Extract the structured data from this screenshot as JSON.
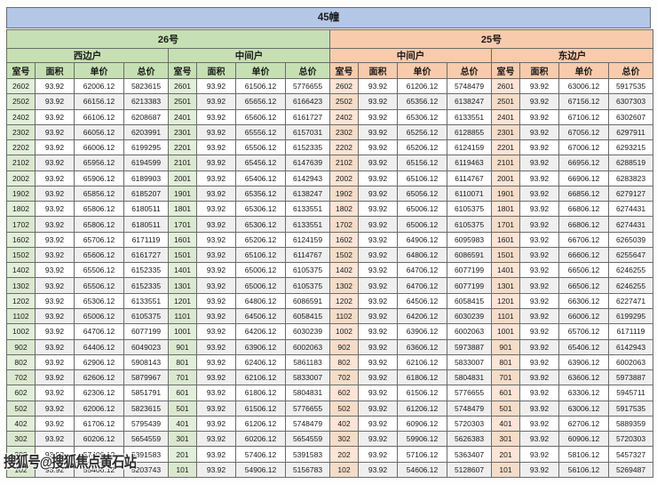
{
  "page_title": "45幢",
  "watermark": {
    "text": "搜狐号@搜狐焦点黄石站"
  },
  "colors": {
    "banner_bg": "#b4c7e7",
    "left_header_bg": "#c6e0b4",
    "left_room_bg": "#e2efda",
    "right_header_bg": "#f8cbad",
    "right_room_bg": "#fce4d6",
    "stripe_bg": "#efefef",
    "border": "#6b6b6b"
  },
  "table": {
    "buildings": [
      {
        "label": "26号"
      },
      {
        "label": "25号"
      }
    ],
    "unit_types": [
      {
        "label": "西边户"
      },
      {
        "label": "中间户"
      },
      {
        "label": "中间户"
      },
      {
        "label": "东边户"
      }
    ],
    "col_headers": [
      "室号",
      "面积",
      "单价",
      "总价"
    ],
    "rows": [
      [
        [
          "2602",
          "93.92",
          "62006.12",
          "5823615"
        ],
        [
          "2601",
          "93.92",
          "61506.12",
          "5776655"
        ],
        [
          "2602",
          "93.92",
          "61206.12",
          "5748479"
        ],
        [
          "2601",
          "93.92",
          "63006.12",
          "5917535"
        ]
      ],
      [
        [
          "2502",
          "93.92",
          "66156.12",
          "6213383"
        ],
        [
          "2501",
          "93.92",
          "65656.12",
          "6166423"
        ],
        [
          "2502",
          "93.92",
          "65356.12",
          "6138247"
        ],
        [
          "2501",
          "93.92",
          "67156.12",
          "6307303"
        ]
      ],
      [
        [
          "2402",
          "93.92",
          "66106.12",
          "6208687"
        ],
        [
          "2401",
          "93.92",
          "65606.12",
          "6161727"
        ],
        [
          "2402",
          "93.92",
          "65306.12",
          "6133551"
        ],
        [
          "2401",
          "93.92",
          "67106.12",
          "6302607"
        ]
      ],
      [
        [
          "2302",
          "93.92",
          "66056.12",
          "6203991"
        ],
        [
          "2301",
          "93.92",
          "65556.12",
          "6157031"
        ],
        [
          "2302",
          "93.92",
          "65256.12",
          "6128855"
        ],
        [
          "2301",
          "93.92",
          "67056.12",
          "6297911"
        ]
      ],
      [
        [
          "2202",
          "93.92",
          "66006.12",
          "6199295"
        ],
        [
          "2201",
          "93.92",
          "65506.12",
          "6152335"
        ],
        [
          "2202",
          "93.92",
          "65206.12",
          "6124159"
        ],
        [
          "2201",
          "93.92",
          "67006.12",
          "6293215"
        ]
      ],
      [
        [
          "2102",
          "93.92",
          "65956.12",
          "6194599"
        ],
        [
          "2101",
          "93.92",
          "65456.12",
          "6147639"
        ],
        [
          "2102",
          "93.92",
          "65156.12",
          "6119463"
        ],
        [
          "2101",
          "93.92",
          "66956.12",
          "6288519"
        ]
      ],
      [
        [
          "2002",
          "93.92",
          "65906.12",
          "6189903"
        ],
        [
          "2001",
          "93.92",
          "65406.12",
          "6142943"
        ],
        [
          "2002",
          "93.92",
          "65106.12",
          "6114767"
        ],
        [
          "2001",
          "93.92",
          "66906.12",
          "6283823"
        ]
      ],
      [
        [
          "1902",
          "93.92",
          "65856.12",
          "6185207"
        ],
        [
          "1901",
          "93.92",
          "65356.12",
          "6138247"
        ],
        [
          "1902",
          "93.92",
          "65056.12",
          "6110071"
        ],
        [
          "1901",
          "93.92",
          "66856.12",
          "6279127"
        ]
      ],
      [
        [
          "1802",
          "93.92",
          "65806.12",
          "6180511"
        ],
        [
          "1801",
          "93.92",
          "65306.12",
          "6133551"
        ],
        [
          "1802",
          "93.92",
          "65006.12",
          "6105375"
        ],
        [
          "1801",
          "93.92",
          "66806.12",
          "6274431"
        ]
      ],
      [
        [
          "1702",
          "93.92",
          "65806.12",
          "6180511"
        ],
        [
          "1701",
          "93.92",
          "65306.12",
          "6133551"
        ],
        [
          "1702",
          "93.92",
          "65006.12",
          "6105375"
        ],
        [
          "1701",
          "93.92",
          "66806.12",
          "6274431"
        ]
      ],
      [
        [
          "1602",
          "93.92",
          "65706.12",
          "6171119"
        ],
        [
          "1601",
          "93.92",
          "65206.12",
          "6124159"
        ],
        [
          "1602",
          "93.92",
          "64906.12",
          "6095983"
        ],
        [
          "1601",
          "93.92",
          "66706.12",
          "6265039"
        ]
      ],
      [
        [
          "1502",
          "93.92",
          "65606.12",
          "6161727"
        ],
        [
          "1501",
          "93.92",
          "65106.12",
          "6114767"
        ],
        [
          "1502",
          "93.92",
          "64806.12",
          "6086591"
        ],
        [
          "1501",
          "93.92",
          "66606.12",
          "6255647"
        ]
      ],
      [
        [
          "1402",
          "93.92",
          "65506.12",
          "6152335"
        ],
        [
          "1401",
          "93.92",
          "65006.12",
          "6105375"
        ],
        [
          "1402",
          "93.92",
          "64706.12",
          "6077199"
        ],
        [
          "1401",
          "93.92",
          "66506.12",
          "6246255"
        ]
      ],
      [
        [
          "1302",
          "93.92",
          "65506.12",
          "6152335"
        ],
        [
          "1301",
          "93.92",
          "65006.12",
          "6105375"
        ],
        [
          "1302",
          "93.92",
          "64706.12",
          "6077199"
        ],
        [
          "1301",
          "93.92",
          "66506.12",
          "6246255"
        ]
      ],
      [
        [
          "1202",
          "93.92",
          "65306.12",
          "6133551"
        ],
        [
          "1201",
          "93.92",
          "64806.12",
          "6086591"
        ],
        [
          "1202",
          "93.92",
          "64506.12",
          "6058415"
        ],
        [
          "1201",
          "93.92",
          "66306.12",
          "6227471"
        ]
      ],
      [
        [
          "1102",
          "93.92",
          "65006.12",
          "6105375"
        ],
        [
          "1101",
          "93.92",
          "64506.12",
          "6058415"
        ],
        [
          "1102",
          "93.92",
          "64206.12",
          "6030239"
        ],
        [
          "1101",
          "93.92",
          "66006.12",
          "6199295"
        ]
      ],
      [
        [
          "1002",
          "93.92",
          "64706.12",
          "6077199"
        ],
        [
          "1001",
          "93.92",
          "64206.12",
          "6030239"
        ],
        [
          "1002",
          "93.92",
          "63906.12",
          "6002063"
        ],
        [
          "1001",
          "93.92",
          "65706.12",
          "6171119"
        ]
      ],
      [
        [
          "902",
          "93.92",
          "64406.12",
          "6049023"
        ],
        [
          "901",
          "93.92",
          "63906.12",
          "6002063"
        ],
        [
          "902",
          "93.92",
          "63606.12",
          "5973887"
        ],
        [
          "901",
          "93.92",
          "65406.12",
          "6142943"
        ]
      ],
      [
        [
          "802",
          "93.92",
          "62906.12",
          "5908143"
        ],
        [
          "801",
          "93.92",
          "62406.12",
          "5861183"
        ],
        [
          "802",
          "93.92",
          "62106.12",
          "5833007"
        ],
        [
          "801",
          "93.92",
          "63906.12",
          "6002063"
        ]
      ],
      [
        [
          "702",
          "93.92",
          "62606.12",
          "5879967"
        ],
        [
          "701",
          "93.92",
          "62106.12",
          "5833007"
        ],
        [
          "702",
          "93.92",
          "61806.12",
          "5804831"
        ],
        [
          "701",
          "93.92",
          "63606.12",
          "5973887"
        ]
      ],
      [
        [
          "602",
          "93.92",
          "62306.12",
          "5851791"
        ],
        [
          "601",
          "93.92",
          "61806.12",
          "5804831"
        ],
        [
          "602",
          "93.92",
          "61506.12",
          "5776655"
        ],
        [
          "601",
          "93.92",
          "63306.12",
          "5945711"
        ]
      ],
      [
        [
          "502",
          "93.92",
          "62006.12",
          "5823615"
        ],
        [
          "501",
          "93.92",
          "61506.12",
          "5776655"
        ],
        [
          "502",
          "93.92",
          "61206.12",
          "5748479"
        ],
        [
          "501",
          "93.92",
          "63006.12",
          "5917535"
        ]
      ],
      [
        [
          "402",
          "93.92",
          "61706.12",
          "5795439"
        ],
        [
          "401",
          "93.92",
          "61206.12",
          "5748479"
        ],
        [
          "402",
          "93.92",
          "60906.12",
          "5720303"
        ],
        [
          "401",
          "93.92",
          "62706.12",
          "5889359"
        ]
      ],
      [
        [
          "302",
          "93.92",
          "60206.12",
          "5654559"
        ],
        [
          "301",
          "93.92",
          "60206.12",
          "5654559"
        ],
        [
          "302",
          "93.92",
          "59906.12",
          "5626383"
        ],
        [
          "301",
          "93.92",
          "60906.12",
          "5720303"
        ]
      ],
      [
        [
          "202",
          "93.92",
          "57406.12",
          "5391583"
        ],
        [
          "201",
          "93.92",
          "57406.12",
          "5391583"
        ],
        [
          "202",
          "93.92",
          "57106.12",
          "5363407"
        ],
        [
          "201",
          "93.92",
          "58106.12",
          "5457327"
        ]
      ],
      [
        [
          "102",
          "93.92",
          "55406.12",
          "5203743"
        ],
        [
          "101",
          "93.92",
          "54906.12",
          "5156783"
        ],
        [
          "102",
          "93.92",
          "54606.12",
          "5128607"
        ],
        [
          "101",
          "93.92",
          "56106.12",
          "5269487"
        ]
      ]
    ]
  }
}
